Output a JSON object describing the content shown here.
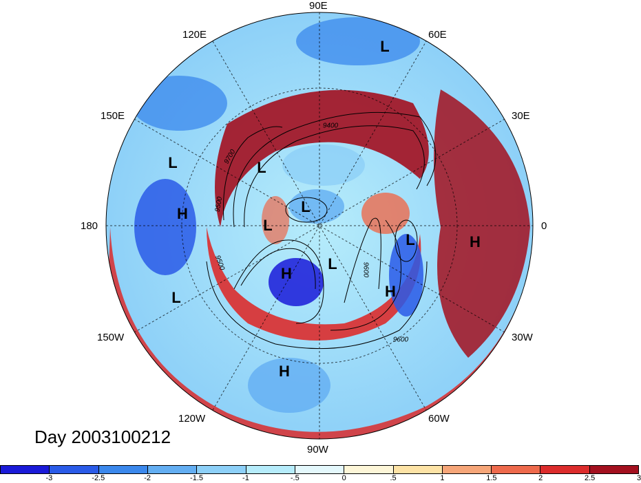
{
  "title": "Day 2003100212",
  "longitude_labels": [
    {
      "id": "lon-90e",
      "text": "90E"
    },
    {
      "id": "lon-60e",
      "text": "60E"
    },
    {
      "id": "lon-30e",
      "text": "30E"
    },
    {
      "id": "lon-0",
      "text": "0"
    },
    {
      "id": "lon-30w",
      "text": "30W"
    },
    {
      "id": "lon-60w",
      "text": "60W"
    },
    {
      "id": "lon-90w",
      "text": "90W"
    },
    {
      "id": "lon-120w",
      "text": "120W"
    },
    {
      "id": "lon-150w",
      "text": "150W"
    },
    {
      "id": "lon-180",
      "text": "180"
    },
    {
      "id": "lon-150e",
      "text": "150E"
    },
    {
      "id": "lon-120e",
      "text": "120E"
    }
  ],
  "pressure_markers": [
    {
      "label": "L"
    },
    {
      "label": "L"
    },
    {
      "label": "L"
    },
    {
      "label": "L"
    },
    {
      "label": "L"
    },
    {
      "label": "L"
    },
    {
      "label": "L"
    },
    {
      "label": "L"
    },
    {
      "label": "H"
    },
    {
      "label": "H"
    },
    {
      "label": "H"
    },
    {
      "label": "H"
    },
    {
      "label": "H"
    }
  ],
  "contour_labels": [
    "9400",
    "9700",
    "9500",
    "9500",
    "9600",
    "9600"
  ],
  "colorbar": {
    "ticks": [
      "-3",
      "-2.5",
      "-2",
      "-1.5",
      "-1",
      "-.5",
      "0",
      ".5",
      "1",
      "1.5",
      "2",
      "2.5",
      "3"
    ],
    "colors": [
      "#1a1ad8",
      "#2a5be8",
      "#3b88ec",
      "#63aef2",
      "#8dd0f8",
      "#b6ecfb",
      "#e4f8fc",
      "#fdf6d8",
      "#fde3a6",
      "#f6a679",
      "#ee6a4c",
      "#dc2c2c",
      "#a3101f"
    ]
  }
}
